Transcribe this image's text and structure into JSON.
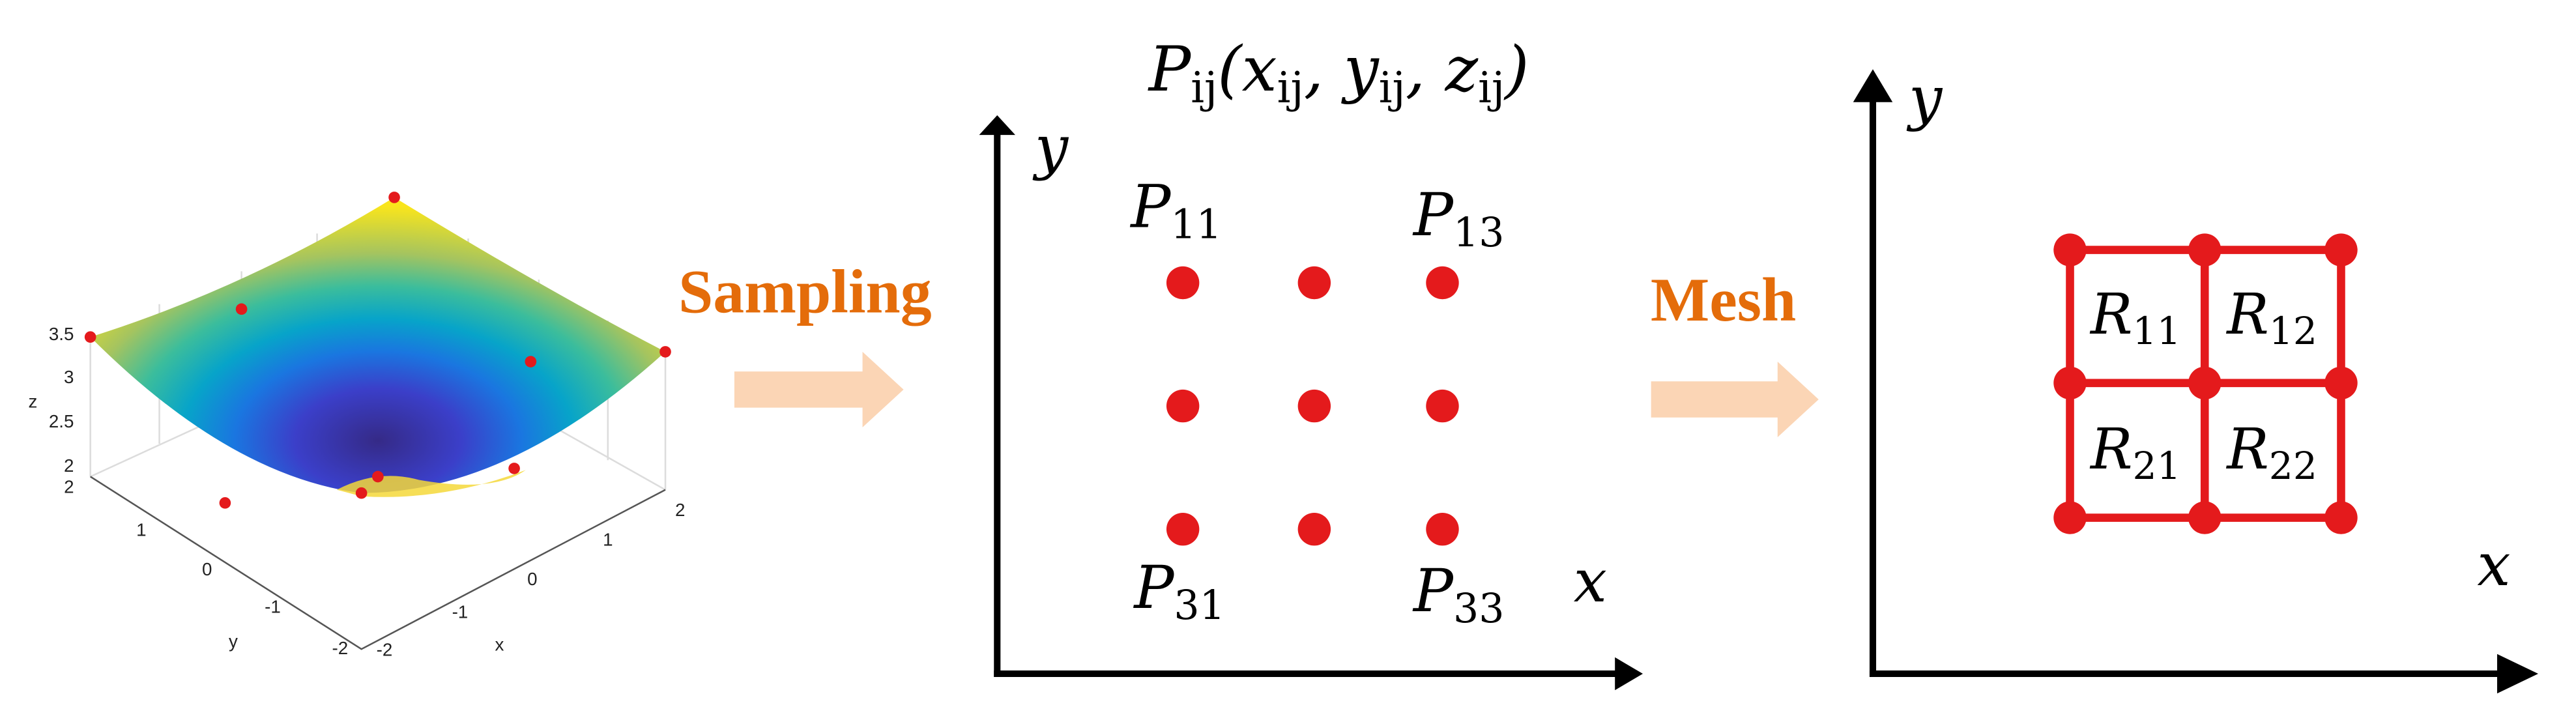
{
  "surface_plot": {
    "z_ticks": [
      "3.5",
      "3",
      "2.5",
      "2"
    ],
    "z_label": "z",
    "y_ticks": [
      "2",
      "1",
      "0",
      "-1",
      "-2"
    ],
    "y_label": "y",
    "x_ticks": [
      "-2",
      "-1",
      "0",
      "1",
      "2"
    ],
    "x_label": "x"
  },
  "step1_label": "Sampling",
  "sample_grid": {
    "formula": [
      {
        "text": "P",
        "sub": "ij"
      },
      {
        "text": "("
      },
      {
        "text": "x",
        "sub": "ij"
      },
      {
        "text": ", "
      },
      {
        "text": "y",
        "sub": "ij"
      },
      {
        "text": ", "
      },
      {
        "text": "z",
        "sub": "ij"
      },
      {
        "text": ")"
      }
    ],
    "y_axis": "y",
    "x_axis": "x",
    "points": [
      {
        "text": "P",
        "sub": "11"
      },
      {
        "text": "P",
        "sub": "13"
      },
      {
        "text": "P",
        "sub": "31"
      },
      {
        "text": "P",
        "sub": "33"
      }
    ]
  },
  "step2_label": "Mesh",
  "mesh": {
    "y_axis": "y",
    "x_axis": "x",
    "regions": [
      {
        "text": "R",
        "sub": "11"
      },
      {
        "text": "R",
        "sub": "12"
      },
      {
        "text": "R",
        "sub": "21"
      },
      {
        "text": "R",
        "sub": "22"
      }
    ]
  }
}
